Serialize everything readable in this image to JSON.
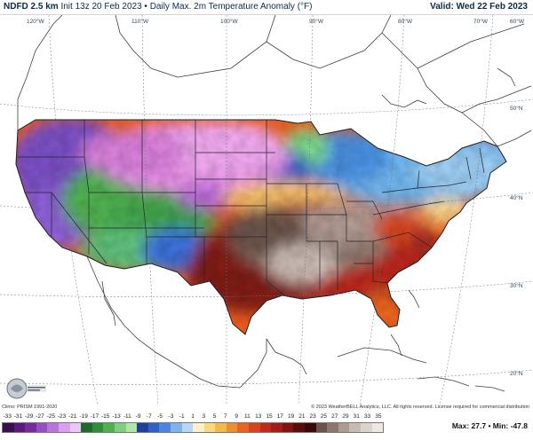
{
  "header": {
    "model": "NDFD 2.5 km",
    "description": "Init 13z 20 Feb 2023 • Daily Max. 2m Temperature Anomaly (°F)",
    "valid_label": "Valid: Wed 22 Feb 2023"
  },
  "map": {
    "longitude_labels": [
      "120°W",
      "110°W",
      "100°W",
      "90°W",
      "80°W",
      "70°W",
      "60°W"
    ],
    "latitude_labels": [
      "50°N",
      "40°N",
      "30°N",
      "20°N"
    ],
    "region": "Contiguous United States",
    "color_pattern": [
      {
        "region": "Northern Plains & Northern Rockies",
        "anomaly": "-33 to -25",
        "color": "#e58ae8"
      },
      {
        "region": "Great Basin & California",
        "anomaly": "-21 to -11",
        "color": "#7a4fc4"
      },
      {
        "region": "Southwest & Central Rockies",
        "anomaly": "-15 to -5",
        "color": "#4fc46a"
      },
      {
        "region": "Great Lakes & Northeast",
        "anomaly": "-7 to 1",
        "color": "#5fa8e6"
      },
      {
        "region": "Southern Plains & Southeast",
        "anomaly": "17 to 27",
        "color": "#a32c24"
      },
      {
        "region": "Mid-South core",
        "anomaly": "27 to 35",
        "color": "#b09a92"
      }
    ]
  },
  "footer": {
    "climo": "Climo: PRISM 1991-2020",
    "copyright": "© 2023 WeatherBELL Analytics, LLC. All rights reserved. License required for commercial distribution"
  },
  "colorbar": {
    "ticks": [
      "-33",
      "-31",
      "-29",
      "-27",
      "-25",
      "-23",
      "-21",
      "-19",
      "-17",
      "-15",
      "-13",
      "-11",
      "-9",
      "-7",
      "-5",
      "-3",
      "-1",
      "1",
      "3",
      "5",
      "7",
      "9",
      "11",
      "13",
      "15",
      "17",
      "19",
      "21",
      "23",
      "25",
      "27",
      "29",
      "31",
      "33",
      "35"
    ],
    "colors": [
      "#3b0e4f",
      "#5a1a7a",
      "#7a2a9f",
      "#9a4bc7",
      "#b873dc",
      "#d8a0ee",
      "#ecc6f6",
      "#1c6b2a",
      "#2d8f3a",
      "#4fb04f",
      "#7cd27c",
      "#aee8a8",
      "#1f3f9a",
      "#2f5fc8",
      "#4a86e0",
      "#7db4ee",
      "#b7d8f5",
      "#fdf0cc",
      "#f9d87f",
      "#f5b94a",
      "#f08e2c",
      "#e8651f",
      "#d7441a",
      "#c02b17",
      "#a11d16",
      "#7f1410",
      "#5a0e0b",
      "#3b0a08",
      "#6a5348",
      "#8c776c",
      "#ad9b92",
      "#c9bbb3",
      "#ddd3cd",
      "#eee7e3"
    ],
    "max_min": "Max: 27.7 • Min: -47.8"
  }
}
